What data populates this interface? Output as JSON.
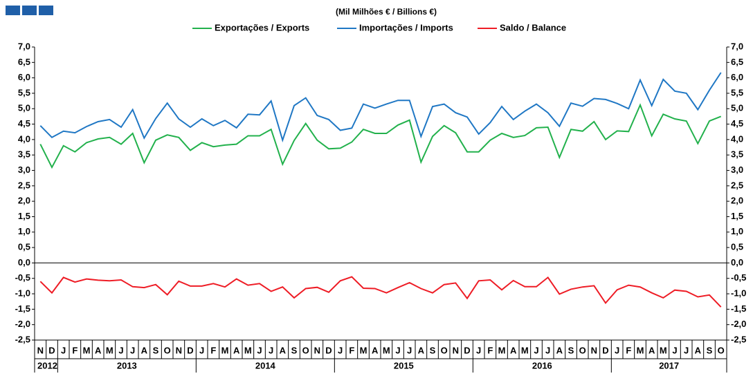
{
  "chart_data": {
    "type": "line",
    "subtitle": "(Mil Milhões € / Billions €)",
    "categories": [
      "N",
      "D",
      "J",
      "F",
      "M",
      "A",
      "M",
      "J",
      "J",
      "A",
      "S",
      "O",
      "N",
      "D",
      "J",
      "F",
      "M",
      "A",
      "M",
      "J",
      "J",
      "A",
      "S",
      "O",
      "N",
      "D",
      "J",
      "F",
      "M",
      "A",
      "M",
      "J",
      "J",
      "A",
      "S",
      "O",
      "N",
      "D",
      "J",
      "F",
      "M",
      "A",
      "M",
      "J",
      "J",
      "A",
      "S",
      "O",
      "N",
      "D",
      "J",
      "F",
      "M",
      "A",
      "M",
      "J",
      "J",
      "A",
      "S",
      "O"
    ],
    "years": [
      "2012",
      "2013",
      "2014",
      "2015",
      "2016",
      "2017"
    ],
    "series": [
      {
        "name": "Exportações / Exports",
        "color": "#22b14c",
        "values": [
          3.85,
          3.1,
          3.8,
          3.6,
          3.9,
          4.02,
          4.07,
          3.85,
          4.2,
          3.25,
          3.98,
          4.15,
          4.07,
          3.65,
          3.9,
          3.77,
          3.82,
          3.85,
          4.12,
          4.12,
          4.33,
          3.2,
          3.97,
          4.52,
          3.98,
          3.7,
          3.72,
          3.92,
          4.33,
          4.2,
          4.2,
          4.47,
          4.63,
          3.27,
          4.1,
          4.45,
          4.22,
          3.6,
          3.6,
          3.98,
          4.2,
          4.07,
          4.13,
          4.38,
          4.4,
          3.42,
          4.33,
          4.27,
          4.58,
          4.0,
          4.28,
          4.26,
          5.12,
          4.12,
          4.82,
          4.67,
          4.6,
          3.87,
          4.6,
          4.75
        ]
      },
      {
        "name": "Importações / Imports",
        "color": "#1f77c4",
        "values": [
          4.45,
          4.07,
          4.27,
          4.22,
          4.42,
          4.58,
          4.65,
          4.4,
          4.97,
          4.05,
          4.68,
          5.18,
          4.67,
          4.4,
          4.67,
          4.45,
          4.62,
          4.38,
          4.82,
          4.8,
          5.25,
          3.98,
          5.1,
          5.35,
          4.78,
          4.65,
          4.3,
          4.37,
          5.15,
          5.02,
          5.15,
          5.27,
          5.27,
          4.1,
          5.07,
          5.15,
          4.87,
          4.73,
          4.18,
          4.55,
          5.07,
          4.65,
          4.92,
          5.15,
          4.87,
          4.43,
          5.18,
          5.08,
          5.33,
          5.3,
          5.17,
          5.0,
          5.93,
          5.1,
          5.95,
          5.57,
          5.5,
          4.97,
          5.6,
          6.17
        ]
      },
      {
        "name": "Saldo / Balance",
        "color": "#ee1c25",
        "values": [
          -0.6,
          -0.97,
          -0.47,
          -0.62,
          -0.52,
          -0.56,
          -0.58,
          -0.55,
          -0.77,
          -0.8,
          -0.7,
          -1.03,
          -0.59,
          -0.75,
          -0.75,
          -0.67,
          -0.78,
          -0.52,
          -0.72,
          -0.67,
          -0.92,
          -0.78,
          -1.13,
          -0.83,
          -0.79,
          -0.95,
          -0.58,
          -0.45,
          -0.82,
          -0.83,
          -0.97,
          -0.8,
          -0.64,
          -0.83,
          -0.97,
          -0.7,
          -0.65,
          -1.15,
          -0.58,
          -0.55,
          -0.87,
          -0.57,
          -0.77,
          -0.77,
          -0.47,
          -1.01,
          -0.85,
          -0.78,
          -0.74,
          -1.3,
          -0.87,
          -0.72,
          -0.78,
          -0.97,
          -1.13,
          -0.88,
          -0.92,
          -1.1,
          -1.04,
          -1.43
        ]
      }
    ],
    "ylim": [
      -2.5,
      7.0
    ],
    "yticks": [
      {
        "value": 7.0,
        "label": "7,0"
      },
      {
        "value": 6.5,
        "label": "6,5"
      },
      {
        "value": 6.0,
        "label": "6,0"
      },
      {
        "value": 5.5,
        "label": "5,5"
      },
      {
        "value": 5.0,
        "label": "5,0"
      },
      {
        "value": 4.5,
        "label": "4,5"
      },
      {
        "value": 4.0,
        "label": "4,0"
      },
      {
        "value": 3.5,
        "label": "3,5"
      },
      {
        "value": 3.0,
        "label": "3,0"
      },
      {
        "value": 2.5,
        "label": "2,5"
      },
      {
        "value": 2.0,
        "label": "2,0"
      },
      {
        "value": 1.5,
        "label": "1,5"
      },
      {
        "value": 1.0,
        "label": "1,0"
      },
      {
        "value": 0.5,
        "label": "0,5"
      },
      {
        "value": 0.0,
        "label": "0,0"
      },
      {
        "value": -0.5,
        "label": "-0,5"
      },
      {
        "value": -1.0,
        "label": "-1,0"
      },
      {
        "value": -1.5,
        "label": "-1,5"
      },
      {
        "value": -2.0,
        "label": "-2,0"
      },
      {
        "value": -2.5,
        "label": "-2,5"
      }
    ],
    "grid": false
  }
}
